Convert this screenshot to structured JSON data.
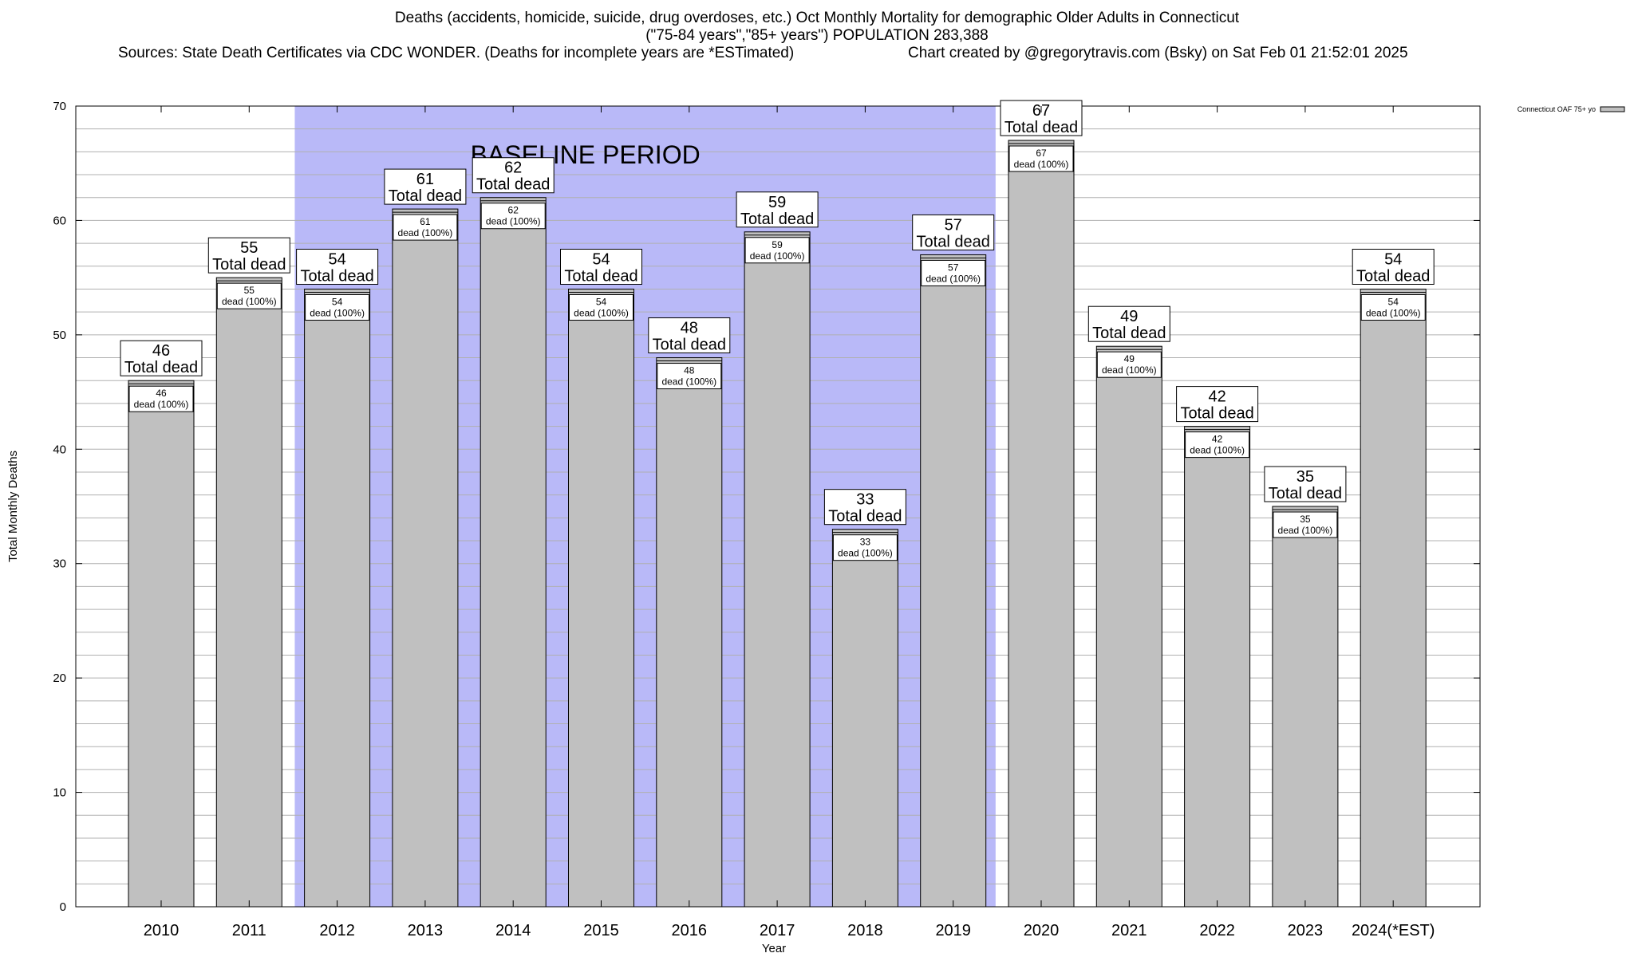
{
  "title": {
    "line1": "Deaths (accidents, homicide, suicide, drug overdoses, etc.) Oct Monthly Mortality for demographic Older Adults in Connecticut",
    "line2": "(\"75-84 years\",\"85+ years\") POPULATION 283,388",
    "line3_left": "Sources: State Death Certificates via CDC WONDER. (Deaths for incomplete years are *ESTimated)",
    "line3_right": "Chart created by @gregorytravis.com (Bsky) on Sat Feb 01 21:52:01 2025"
  },
  "colors": {
    "bar_fill": "#c0c0c0",
    "baseline_shade": "#b9b9f8",
    "grid": "#b0b0b0"
  },
  "chart_data": {
    "type": "bar",
    "title": "Deaths (accidents, homicide, suicide, drug overdoses, etc.) Oct Monthly Mortality for demographic Older Adults in Connecticut",
    "xlabel": "Year",
    "ylabel": "Total Monthly Deaths",
    "ylim": [
      0,
      70
    ],
    "yticks": [
      0,
      10,
      20,
      30,
      40,
      50,
      60,
      70
    ],
    "grid": true,
    "legend_position": "top-right",
    "categories": [
      "2010",
      "2011",
      "2012",
      "2013",
      "2014",
      "2015",
      "2016",
      "2017",
      "2018",
      "2019",
      "2020",
      "2021",
      "2022",
      "2023",
      "2024(*EST)"
    ],
    "series": [
      {
        "name": "Connecticut OAF 75+ yo",
        "values": [
          46,
          55,
          54,
          61,
          62,
          54,
          48,
          59,
          33,
          57,
          67,
          49,
          42,
          35,
          54
        ]
      }
    ],
    "top_label_text": "Total dead",
    "inner_label_text": "dead (100%)",
    "baseline_period": {
      "label": "BASELINE PERIOD",
      "start_category": "2012",
      "end_category": "2019"
    }
  }
}
